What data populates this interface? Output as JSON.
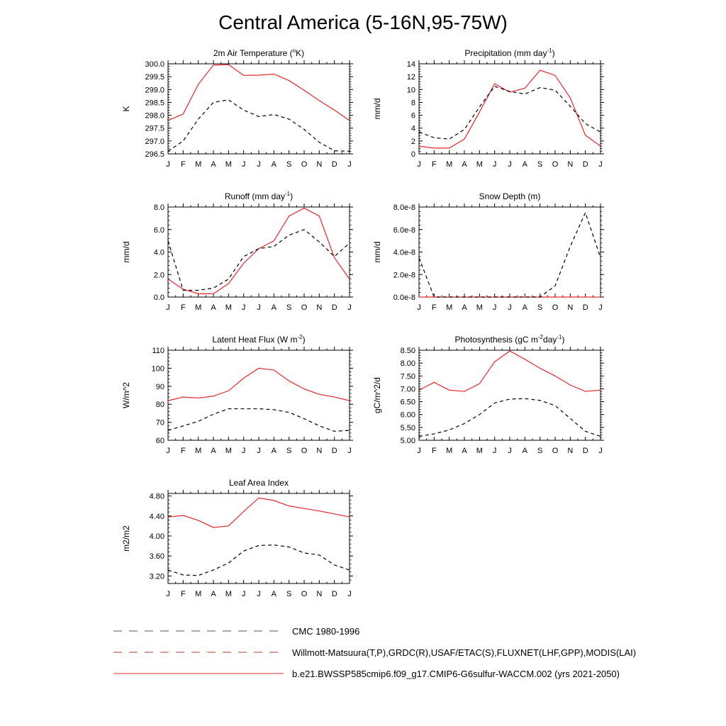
{
  "page": {
    "title": "Central America (5-16N,95-75W)"
  },
  "months": [
    "J",
    "F",
    "M",
    "A",
    "M",
    "J",
    "J",
    "A",
    "S",
    "O",
    "N",
    "D",
    "J"
  ],
  "colors": {
    "model": "#e8262a",
    "obs": "#000000"
  },
  "legend": [
    {
      "label": "CMC 1980-1996",
      "style": "long-dash",
      "color": "#555555"
    },
    {
      "label": "Willmott-Matsuura(T,P),GRDC(R),USAF/ETAC(S),FLUXNET(LHF,GPP),MODIS(LAI)",
      "style": "long-dash",
      "color": "#c0392b"
    },
    {
      "label": "b.e21.BWSSP585cmip6.f09_g17.CMIP6-G6sulfur-WACCM.002 (yrs 2021-2050)",
      "style": "solid",
      "color": "#e8262a"
    }
  ],
  "chart_data": [
    {
      "type": "line",
      "title": "2m Air Temperature (",
      "title_sup": "o",
      "title_after": "K)",
      "ylabel": "K",
      "ylim": [
        296.5,
        300.0
      ],
      "yticks": [
        "300.0",
        "299.5",
        "299.0",
        "298.5",
        "298.0",
        "297.5",
        "297.0",
        "296.5"
      ],
      "ytick_values": [
        300.0,
        299.5,
        299.0,
        298.5,
        298.0,
        297.5,
        297.0,
        296.5
      ],
      "series": [
        {
          "style": "solid",
          "values": [
            297.8,
            298.05,
            299.2,
            299.95,
            299.97,
            299.55,
            299.56,
            299.6,
            299.35,
            298.97,
            298.57,
            298.2,
            297.8
          ]
        },
        {
          "style": "dashed",
          "values": [
            296.6,
            297.0,
            297.85,
            298.5,
            298.6,
            298.2,
            297.95,
            298.03,
            297.85,
            297.45,
            296.95,
            296.62,
            296.6
          ]
        }
      ]
    },
    {
      "type": "line",
      "title": "Precipitation (mm day",
      "title_sup": "-1",
      "title_after": ")",
      "ylabel": "mm/d",
      "ylim": [
        0,
        14
      ],
      "yticks": [
        "14",
        "12",
        "10",
        "8",
        "6",
        "4",
        "2",
        "0"
      ],
      "ytick_values": [
        14,
        12,
        10,
        8,
        6,
        4,
        2,
        0
      ],
      "series": [
        {
          "style": "solid",
          "values": [
            1.2,
            0.9,
            0.9,
            2.3,
            6.5,
            10.9,
            9.6,
            10.2,
            13.0,
            12.2,
            8.7,
            2.9,
            1.2
          ]
        },
        {
          "style": "dashed",
          "values": [
            3.4,
            2.5,
            2.3,
            3.8,
            7.3,
            10.5,
            9.7,
            9.3,
            10.3,
            9.9,
            7.4,
            4.7,
            3.4
          ]
        }
      ]
    },
    {
      "type": "line",
      "title": "Runoff (mm day",
      "title_sup": "-1",
      "title_after": ")",
      "ylabel": "mm/d",
      "ylim": [
        0,
        8
      ],
      "yticks": [
        "8.0",
        "6.0",
        "4.0",
        "2.0",
        "0.0"
      ],
      "ytick_values": [
        8,
        6,
        4,
        2,
        0
      ],
      "series": [
        {
          "style": "solid",
          "values": [
            1.6,
            0.7,
            0.3,
            0.3,
            1.2,
            3.0,
            4.3,
            5.0,
            7.2,
            7.9,
            7.2,
            3.5,
            1.6
          ]
        },
        {
          "style": "dashed",
          "values": [
            5.0,
            0.6,
            0.6,
            0.8,
            1.6,
            3.6,
            4.3,
            4.5,
            5.5,
            6.0,
            4.9,
            3.6,
            4.8
          ]
        }
      ]
    },
    {
      "type": "line",
      "title": "Snow Depth (m)",
      "title_sup": "",
      "title_after": "",
      "ylabel": "mm/d",
      "ylim": [
        0,
        8e-08
      ],
      "yticks": [
        "8.0e-8",
        "6.0e-8",
        "4.0e-8",
        "2.0e-8",
        "0.0e-8"
      ],
      "ytick_values": [
        8e-08,
        6e-08,
        4e-08,
        2e-08,
        0
      ],
      "series": [
        {
          "style": "solid",
          "values": [
            0,
            0,
            0,
            0,
            0,
            0,
            0,
            0,
            0,
            0,
            0,
            0,
            0
          ]
        },
        {
          "style": "dashed",
          "values": [
            3.5e-08,
            0,
            0,
            0,
            0,
            0,
            0,
            0,
            0,
            1e-08,
            4.5e-08,
            7.5e-08,
            3.5e-08
          ]
        }
      ]
    },
    {
      "type": "line",
      "title": "Latent Heat Flux (W m",
      "title_sup": "-2",
      "title_after": ")",
      "ylabel": "W/m^2",
      "ylim": [
        60,
        110
      ],
      "yticks": [
        "110",
        "100",
        "90",
        "80",
        "70",
        "60"
      ],
      "ytick_values": [
        110,
        100,
        90,
        80,
        70,
        60
      ],
      "series": [
        {
          "style": "solid",
          "values": [
            82,
            84,
            83.5,
            84.5,
            87.5,
            94.5,
            100,
            99,
            93,
            88.5,
            85.5,
            84,
            82
          ]
        },
        {
          "style": "dashed",
          "values": [
            65.5,
            68,
            70.5,
            74.5,
            77.5,
            77.5,
            77.5,
            77,
            75.5,
            72,
            68,
            65,
            65.5
          ]
        }
      ]
    },
    {
      "type": "line",
      "title": "Photosynthesis (gC m",
      "title_sup": "-2",
      "title_after": "day",
      "title_sup2": "-1",
      "title_after2": ")",
      "ylabel": "gC/m^2/d",
      "ylim": [
        5.0,
        8.5
      ],
      "yticks": [
        "8.50",
        "8.00",
        "7.50",
        "7.00",
        "6.50",
        "6.00",
        "5.50",
        "5.00"
      ],
      "ytick_values": [
        8.5,
        8.0,
        7.5,
        7.0,
        6.5,
        6.0,
        5.5,
        5.0
      ],
      "series": [
        {
          "style": "solid",
          "values": [
            6.95,
            7.25,
            6.95,
            6.9,
            7.2,
            8.05,
            8.47,
            8.15,
            7.8,
            7.5,
            7.15,
            6.9,
            6.95
          ]
        },
        {
          "style": "dashed",
          "values": [
            5.15,
            5.25,
            5.4,
            5.65,
            6.0,
            6.45,
            6.6,
            6.62,
            6.55,
            6.35,
            5.85,
            5.35,
            5.15
          ]
        }
      ]
    },
    {
      "type": "line",
      "title": "Leaf Area Index",
      "title_sup": "",
      "title_after": "",
      "ylabel": "m2/m2",
      "ylim": [
        3.05,
        4.85
      ],
      "yticks": [
        "4.80",
        "4.40",
        "4.00",
        "3.60",
        "3.20"
      ],
      "ytick_values": [
        4.8,
        4.4,
        4.0,
        3.6,
        3.2
      ],
      "series": [
        {
          "style": "solid",
          "values": [
            4.38,
            4.41,
            4.31,
            4.17,
            4.2,
            4.49,
            4.76,
            4.71,
            4.6,
            4.55,
            4.5,
            4.44,
            4.38
          ]
        },
        {
          "style": "dashed",
          "values": [
            3.32,
            3.22,
            3.21,
            3.32,
            3.46,
            3.7,
            3.81,
            3.82,
            3.78,
            3.66,
            3.62,
            3.42,
            3.32
          ]
        }
      ]
    }
  ]
}
